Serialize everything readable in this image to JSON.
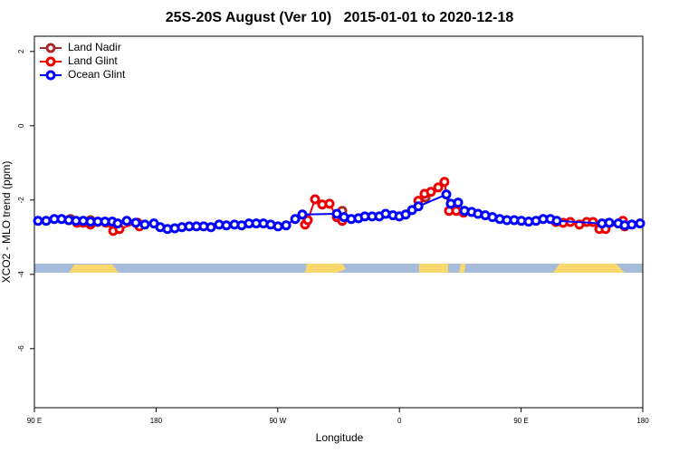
{
  "chart_data": {
    "type": "line",
    "title": "25S-20S August (Ver 10)   2015-01-01 to 2020-12-18",
    "x_label": "Longitude",
    "y_label": "XCO2 - MLO trend (ppm)",
    "xlim": [
      90,
      540
    ],
    "ylim": [
      -7.59,
      2.41
    ],
    "xticks": [
      {
        "value": 90,
        "label": "90 E"
      },
      {
        "value": 180,
        "label": "180"
      },
      {
        "value": 270,
        "label": "90 W"
      },
      {
        "value": 360,
        "label": "0"
      },
      {
        "value": 450,
        "label": "90 E"
      },
      {
        "value": 540,
        "label": "180"
      }
    ],
    "yticks": [
      2,
      0,
      -2,
      -4,
      -6
    ],
    "legend": "top-left",
    "series": [
      {
        "name": "Land Nadir",
        "color": "#a52a2a",
        "x": [
          116.8,
          131.5,
          null,
          317.7,
          null,
          379.3
        ],
        "values": [
          -2.51,
          -2.54,
          null,
          -2.29,
          null,
          -1.93
        ]
      },
      {
        "name": "Land Glint",
        "color": "#ee0000",
        "x": [
          115.4,
          121.5,
          126.1,
          131.5,
          136.9,
          142.9,
          148.3,
          152.9,
          166.3,
          167.7,
          null,
          290.2,
          292.2,
          297.6,
          302.9,
          308.3,
          313.7,
          317.7,
          null,
          374.0,
          378.6,
          383.3,
          388.7,
          393.3,
          396.7,
          402.0,
          407.4,
          null,
          475.7,
          481.1,
          486.4,
          493.1,
          498.5,
          503.2,
          507.9,
          512.5,
          525.3,
          526.6
        ],
        "values": [
          -2.54,
          -2.61,
          -2.61,
          -2.66,
          -2.59,
          -2.61,
          -2.83,
          -2.78,
          -2.61,
          -2.71,
          null,
          -2.66,
          -2.54,
          -1.98,
          -2.12,
          -2.1,
          -2.46,
          -2.56,
          null,
          -2.02,
          -1.83,
          -1.78,
          -1.66,
          -1.51,
          -2.29,
          -2.29,
          -2.34,
          null,
          -2.59,
          -2.61,
          -2.59,
          -2.66,
          -2.59,
          -2.59,
          -2.78,
          -2.78,
          -2.56,
          -2.71
        ]
      },
      {
        "name": "Ocean Glint",
        "color": "#0000ff",
        "x": [
          92.7,
          98.7,
          104.7,
          110.1,
          115.4,
          120.8,
          126.1,
          131.5,
          136.9,
          142.2,
          147.6,
          151.6,
          158.3,
          165.0,
          171.7,
          178.4,
          183.1,
          188.4,
          193.8,
          199.1,
          204.5,
          209.9,
          215.2,
          220.6,
          226.6,
          232.0,
          238.0,
          243.3,
          248.7,
          254.1,
          259.4,
          264.8,
          270.2,
          276.2,
          282.9,
          288.2,
          313.7,
          319.0,
          324.4,
          329.7,
          334.4,
          339.8,
          345.1,
          349.8,
          355.2,
          359.9,
          364.6,
          369.3,
          374.0,
          394.7,
          398.0,
          403.4,
          408.1,
          413.4,
          418.1,
          423.5,
          428.8,
          434.2,
          439.5,
          444.9,
          450.2,
          455.6,
          461.0,
          466.3,
          471.7,
          476.4,
          509.8,
          515.2,
          521.9,
          526.6,
          531.9,
          538.0
        ],
        "values": [
          -2.56,
          -2.56,
          -2.51,
          -2.51,
          -2.54,
          -2.56,
          -2.56,
          -2.58,
          -2.58,
          -2.58,
          -2.58,
          -2.63,
          -2.56,
          -2.61,
          -2.66,
          -2.63,
          -2.73,
          -2.78,
          -2.76,
          -2.73,
          -2.71,
          -2.71,
          -2.71,
          -2.73,
          -2.66,
          -2.68,
          -2.66,
          -2.68,
          -2.63,
          -2.63,
          -2.63,
          -2.66,
          -2.71,
          -2.68,
          -2.51,
          -2.39,
          -2.37,
          -2.46,
          -2.51,
          -2.49,
          -2.44,
          -2.44,
          -2.44,
          -2.37,
          -2.41,
          -2.44,
          -2.39,
          -2.27,
          -2.17,
          -1.85,
          -2.1,
          -2.07,
          -2.29,
          -2.32,
          -2.37,
          -2.41,
          -2.46,
          -2.51,
          -2.54,
          -2.54,
          -2.56,
          -2.58,
          -2.56,
          -2.51,
          -2.51,
          -2.56,
          -2.63,
          -2.61,
          -2.63,
          -2.68,
          -2.66,
          -2.63
        ]
      }
    ]
  }
}
